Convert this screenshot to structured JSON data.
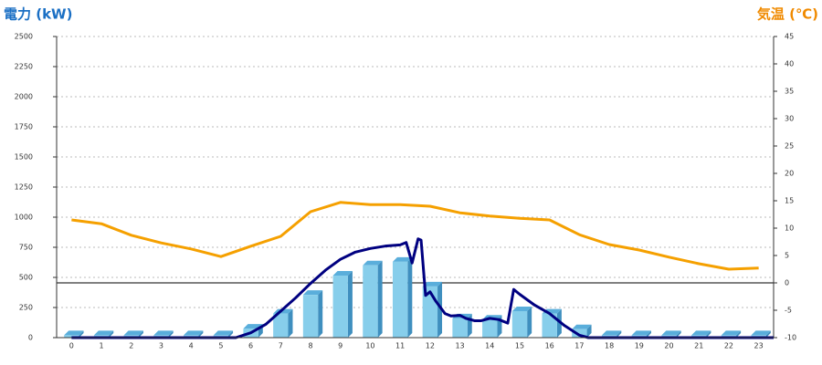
{
  "chart_data": {
    "type": "bar-line",
    "y_axis_label": "電力 (kW)",
    "y2_axis_label": "気温 (℃)",
    "categories": [
      "0",
      "1",
      "2",
      "3",
      "4",
      "5",
      "6",
      "7",
      "8",
      "9",
      "10",
      "11",
      "12",
      "13",
      "14",
      "15",
      "16",
      "17",
      "18",
      "19",
      "20",
      "21",
      "22",
      "23"
    ],
    "ylim": [
      0,
      2500
    ],
    "yticks": [
      0,
      250,
      500,
      750,
      1000,
      1250,
      1500,
      1750,
      2000,
      2250,
      2500
    ],
    "y2lim": [
      -10,
      45
    ],
    "y2ticks": [
      -10,
      -5,
      0,
      5,
      10,
      15,
      20,
      25,
      30,
      35,
      40,
      45
    ],
    "grid": true,
    "series": [
      {
        "type": "bar",
        "color": "#87ceeb",
        "values": [
          20,
          20,
          20,
          20,
          20,
          20,
          75,
          200,
          355,
          515,
          600,
          630,
          425,
          160,
          150,
          220,
          200,
          70,
          20,
          20,
          20,
          20,
          20,
          20
        ]
      },
      {
        "type": "line",
        "color": "#000080",
        "x": [
          0,
          5.5,
          6,
          6.5,
          7,
          7.5,
          8,
          8.5,
          9,
          9.5,
          10,
          10.5,
          11,
          11.2,
          11.4,
          11.6,
          11.7,
          11.85,
          12,
          12.2,
          12.5,
          12.7,
          13,
          13.2,
          13.5,
          13.7,
          14,
          14.3,
          14.6,
          14.8,
          15,
          15.5,
          16,
          16.5,
          17,
          17.3,
          23.5
        ],
        "values": [
          0,
          0,
          40,
          110,
          220,
          330,
          450,
          560,
          650,
          710,
          740,
          760,
          770,
          790,
          620,
          820,
          810,
          350,
          380,
          300,
          200,
          180,
          185,
          160,
          140,
          140,
          160,
          150,
          120,
          400,
          360,
          270,
          200,
          100,
          20,
          0,
          0
        ]
      },
      {
        "type": "line",
        "axis": "y2",
        "color": "#f5a000",
        "values": [
          11.5,
          10.8,
          8.7,
          7.3,
          6.2,
          4.8,
          6.7,
          8.5,
          13,
          14.7,
          14.3,
          14.3,
          14,
          12.8,
          12.2,
          11.8,
          11.5,
          8.8,
          7,
          6,
          4.7,
          3.5,
          2.5,
          2.7
        ]
      }
    ]
  }
}
